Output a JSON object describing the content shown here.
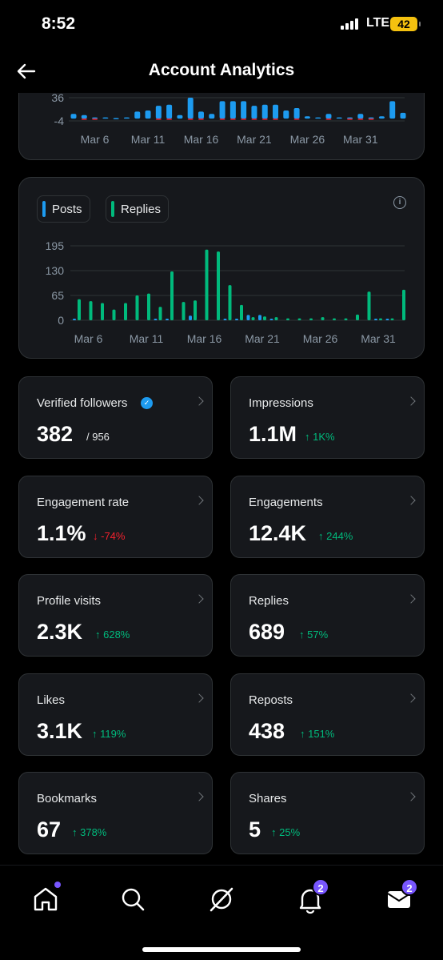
{
  "status_bar": {
    "time": "8:52",
    "network": "LTE",
    "battery": "42"
  },
  "header": {
    "title": "Account Analytics"
  },
  "chart_data": [
    {
      "type": "bar",
      "title": "",
      "ytick_labels": [
        "36",
        "-4"
      ],
      "xtick_labels": [
        "Mar 6",
        "Mar 11",
        "Mar 16",
        "Mar 21",
        "Mar 26",
        "Mar 31"
      ],
      "ylim": [
        -4,
        36
      ],
      "categories": [
        "Mar 4",
        "Mar 5",
        "Mar 6",
        "Mar 7",
        "Mar 8",
        "Mar 9",
        "Mar 10",
        "Mar 11",
        "Mar 12",
        "Mar 13",
        "Mar 14",
        "Mar 15",
        "Mar 16",
        "Mar 17",
        "Mar 18",
        "Mar 19",
        "Mar 20",
        "Mar 21",
        "Mar 22",
        "Mar 23",
        "Mar 24",
        "Mar 25",
        "Mar 26",
        "Mar 27",
        "Mar 28",
        "Mar 29",
        "Mar 30",
        "Mar 31",
        "Apr 1",
        "Apr 2",
        "Apr 3",
        "Apr 4"
      ],
      "series": [
        {
          "name": "",
          "color": "#1d9bf0",
          "values": [
            8,
            6,
            2,
            2,
            1,
            2,
            12,
            14,
            22,
            24,
            6,
            36,
            12,
            8,
            30,
            30,
            30,
            22,
            24,
            24,
            14,
            18,
            4,
            2,
            8,
            2,
            2,
            8,
            2,
            4,
            30,
            10
          ]
        },
        {
          "name": "",
          "color": "#f4212e",
          "values": [
            0,
            -2,
            -1,
            0,
            0,
            0,
            0,
            0,
            -1,
            -1,
            0,
            -1,
            -1,
            0,
            -1,
            -1,
            -2,
            -1,
            -1,
            -1,
            0,
            -1,
            0,
            0,
            -1,
            0,
            -2,
            -1,
            -1,
            0,
            0,
            0
          ]
        }
      ],
      "grid": true
    },
    {
      "type": "bar",
      "title": "",
      "ytick_labels": [
        "195",
        "130",
        "65",
        "0"
      ],
      "xtick_labels": [
        "Mar 6",
        "Mar 11",
        "Mar 16",
        "Mar 21",
        "Mar 26",
        "Mar 31"
      ],
      "ylim": [
        0,
        195
      ],
      "categories": [
        "Mar 5",
        "Mar 6",
        "Mar 7",
        "Mar 8",
        "Mar 9",
        "Mar 10",
        "Mar 11",
        "Mar 12",
        "Mar 13",
        "Mar 14",
        "Mar 15",
        "Mar 16",
        "Mar 17",
        "Mar 18",
        "Mar 19",
        "Mar 20",
        "Mar 21",
        "Mar 22",
        "Mar 23",
        "Mar 24",
        "Mar 25",
        "Mar 26",
        "Mar 27",
        "Mar 28",
        "Mar 29",
        "Mar 30",
        "Mar 31",
        "Apr 1",
        "Apr 2"
      ],
      "series": [
        {
          "name": "Posts",
          "color": "#1d9bf0",
          "values": [
            2,
            0,
            0,
            0,
            0,
            0,
            0,
            1,
            1,
            0,
            12,
            0,
            0,
            3,
            4,
            14,
            14,
            3,
            0,
            0,
            0,
            0,
            0,
            0,
            0,
            0,
            1,
            1,
            0
          ]
        },
        {
          "name": "Replies",
          "color": "#00ba7c",
          "values": [
            55,
            50,
            45,
            28,
            45,
            65,
            70,
            35,
            128,
            48,
            52,
            185,
            180,
            92,
            40,
            8,
            10,
            8,
            5,
            5,
            5,
            8,
            5,
            5,
            15,
            75,
            5,
            5,
            80
          ]
        }
      ],
      "legend": [
        "Posts",
        "Replies"
      ],
      "grid": true
    }
  ],
  "stats": [
    {
      "label": "Verified followers",
      "value": "382",
      "sub": "/ 956",
      "verified": true
    },
    {
      "label": "Impressions",
      "value": "1.1M",
      "delta": "↑ 1K%",
      "dir": "up"
    },
    {
      "label": "Engagement rate",
      "value": "1.1%",
      "delta": "↓ -74%",
      "dir": "down"
    },
    {
      "label": "Engagements",
      "value": "12.4K",
      "delta": "↑ 244%",
      "dir": "up"
    },
    {
      "label": "Profile visits",
      "value": "2.3K",
      "delta": "↑ 628%",
      "dir": "up"
    },
    {
      "label": "Replies",
      "value": "689",
      "delta": "↑ 57%",
      "dir": "up"
    },
    {
      "label": "Likes",
      "value": "3.1K",
      "delta": "↑ 119%",
      "dir": "up"
    },
    {
      "label": "Reposts",
      "value": "438",
      "delta": "↑ 151%",
      "dir": "up"
    },
    {
      "label": "Bookmarks",
      "value": "67",
      "delta": "↑ 378%",
      "dir": "up"
    },
    {
      "label": "Shares",
      "value": "5",
      "delta": "↑ 25%",
      "dir": "up"
    }
  ],
  "nav": {
    "items": [
      "home-icon",
      "search-icon",
      "grok-icon",
      "notifications-icon",
      "messages-icon"
    ],
    "notifications_badge": "2",
    "messages_badge": "2"
  }
}
